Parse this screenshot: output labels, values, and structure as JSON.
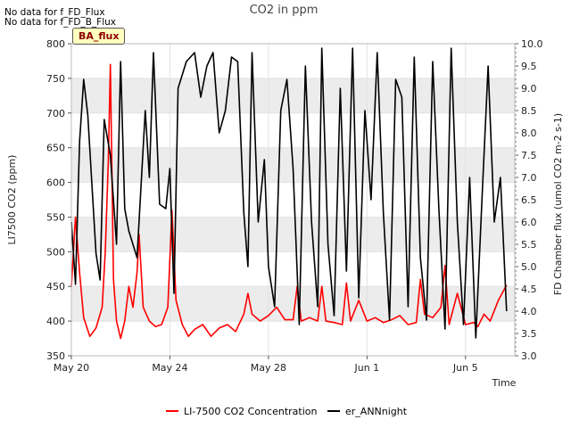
{
  "notes": [
    "No data for f_FD_Flux",
    "No data for f_FD_B_Flux"
  ],
  "badge": "BA_flux",
  "chart_data": {
    "type": "line",
    "title": "CO2 in ppm",
    "xlabel": "Time",
    "ylabel": "LI7500 CO2 (ppm)",
    "y2label": "FD Chamber flux (umol CO2 m-2 s-1)",
    "xlim": [
      "2024-05-20",
      "2024-06-07"
    ],
    "x_ticks": [
      "May 20",
      "May 24",
      "May 28",
      "Jun 1",
      "Jun 5"
    ],
    "x_tick_dates": [
      "2024-05-20",
      "2024-05-24",
      "2024-05-28",
      "2024-06-01",
      "2024-06-05"
    ],
    "ylim": [
      350,
      800
    ],
    "y_ticks": [
      "350",
      "400",
      "450",
      "500",
      "550",
      "600",
      "650",
      "700",
      "750",
      "800"
    ],
    "y2lim": [
      3.0,
      10.0
    ],
    "y2_ticks": [
      "3.0",
      "3.5",
      "4.0",
      "4.5",
      "5.0",
      "5.5",
      "6.0",
      "6.5",
      "7.0",
      "7.5",
      "8.0",
      "8.5",
      "9.0",
      "9.5",
      "10.0"
    ],
    "grid": true,
    "legend_position": "bottom",
    "series": [
      {
        "name": "LI-7500 CO2 Concentration",
        "axis": "left",
        "color": "#ff0000",
        "points": [
          [
            "2024-05-20 00:00",
            450
          ],
          [
            "2024-05-20 04:00",
            550
          ],
          [
            "2024-05-20 08:00",
            470
          ],
          [
            "2024-05-20 12:00",
            405
          ],
          [
            "2024-05-20 18:00",
            378
          ],
          [
            "2024-05-21 00:00",
            390
          ],
          [
            "2024-05-21 06:00",
            420
          ],
          [
            "2024-05-21 09:00",
            500
          ],
          [
            "2024-05-21 12:00",
            630
          ],
          [
            "2024-05-21 14:00",
            770
          ],
          [
            "2024-05-21 17:00",
            460
          ],
          [
            "2024-05-21 20:00",
            400
          ],
          [
            "2024-05-22 00:00",
            375
          ],
          [
            "2024-05-22 04:00",
            400
          ],
          [
            "2024-05-22 08:00",
            450
          ],
          [
            "2024-05-22 12:00",
            420
          ],
          [
            "2024-05-22 16:00",
            470
          ],
          [
            "2024-05-22 18:00",
            525
          ],
          [
            "2024-05-22 22:00",
            420
          ],
          [
            "2024-05-23 04:00",
            400
          ],
          [
            "2024-05-23 10:00",
            392
          ],
          [
            "2024-05-23 16:00",
            395
          ],
          [
            "2024-05-23 22:00",
            420
          ],
          [
            "2024-05-24 02:00",
            560
          ],
          [
            "2024-05-24 06:00",
            430
          ],
          [
            "2024-05-24 12:00",
            395
          ],
          [
            "2024-05-24 18:00",
            378
          ],
          [
            "2024-05-25 00:00",
            388
          ],
          [
            "2024-05-25 08:00",
            395
          ],
          [
            "2024-05-25 16:00",
            378
          ],
          [
            "2024-05-26 00:00",
            390
          ],
          [
            "2024-05-26 08:00",
            395
          ],
          [
            "2024-05-26 16:00",
            385
          ],
          [
            "2024-05-27 00:00",
            410
          ],
          [
            "2024-05-27 04:00",
            440
          ],
          [
            "2024-05-27 08:00",
            410
          ],
          [
            "2024-05-27 16:00",
            400
          ],
          [
            "2024-05-28 00:00",
            408
          ],
          [
            "2024-05-28 08:00",
            420
          ],
          [
            "2024-05-28 16:00",
            402
          ],
          [
            "2024-05-29 00:00",
            402
          ],
          [
            "2024-05-29 04:00",
            450
          ],
          [
            "2024-05-29 08:00",
            400
          ],
          [
            "2024-05-29 16:00",
            405
          ],
          [
            "2024-05-30 00:00",
            400
          ],
          [
            "2024-05-30 04:00",
            450
          ],
          [
            "2024-05-30 08:00",
            400
          ],
          [
            "2024-05-30 16:00",
            398
          ],
          [
            "2024-05-31 00:00",
            395
          ],
          [
            "2024-05-31 04:00",
            455
          ],
          [
            "2024-05-31 08:00",
            400
          ],
          [
            "2024-05-31 16:00",
            430
          ],
          [
            "2024-06-01 00:00",
            400
          ],
          [
            "2024-06-01 08:00",
            405
          ],
          [
            "2024-06-01 16:00",
            398
          ],
          [
            "2024-06-02 00:00",
            402
          ],
          [
            "2024-06-02 08:00",
            408
          ],
          [
            "2024-06-02 16:00",
            395
          ],
          [
            "2024-06-03 00:00",
            398
          ],
          [
            "2024-06-03 04:00",
            460
          ],
          [
            "2024-06-03 08:00",
            410
          ],
          [
            "2024-06-03 16:00",
            405
          ],
          [
            "2024-06-04 00:00",
            420
          ],
          [
            "2024-06-04 04:00",
            480
          ],
          [
            "2024-06-04 08:00",
            395
          ],
          [
            "2024-06-04 16:00",
            440
          ],
          [
            "2024-06-05 00:00",
            395
          ],
          [
            "2024-06-05 08:00",
            398
          ],
          [
            "2024-06-05 12:00",
            392
          ],
          [
            "2024-06-05 18:00",
            410
          ],
          [
            "2024-06-06 00:00",
            400
          ],
          [
            "2024-06-06 08:00",
            430
          ],
          [
            "2024-06-06 16:00",
            452
          ]
        ]
      },
      {
        "name": "er_ANNnight",
        "axis": "right",
        "color": "#000000",
        "points": [
          [
            "2024-05-20 00:00",
            6.0
          ],
          [
            "2024-05-20 04:00",
            4.6
          ],
          [
            "2024-05-20 08:00",
            7.8
          ],
          [
            "2024-05-20 12:00",
            9.2
          ],
          [
            "2024-05-20 16:00",
            8.4
          ],
          [
            "2024-05-21 00:00",
            5.3
          ],
          [
            "2024-05-21 04:00",
            4.7
          ],
          [
            "2024-05-21 08:00",
            8.3
          ],
          [
            "2024-05-21 14:00",
            7.5
          ],
          [
            "2024-05-21 20:00",
            5.5
          ],
          [
            "2024-05-22 00:00",
            9.6
          ],
          [
            "2024-05-22 04:00",
            6.3
          ],
          [
            "2024-05-22 08:00",
            5.8
          ],
          [
            "2024-05-22 16:00",
            5.2
          ],
          [
            "2024-05-23 00:00",
            8.5
          ],
          [
            "2024-05-23 04:00",
            7.0
          ],
          [
            "2024-05-23 08:00",
            9.8
          ],
          [
            "2024-05-23 14:00",
            6.4
          ],
          [
            "2024-05-23 20:00",
            6.3
          ],
          [
            "2024-05-24 00:00",
            7.2
          ],
          [
            "2024-05-24 04:00",
            4.4
          ],
          [
            "2024-05-24 08:00",
            9.0
          ],
          [
            "2024-05-24 16:00",
            9.6
          ],
          [
            "2024-05-25 00:00",
            9.8
          ],
          [
            "2024-05-25 06:00",
            8.8
          ],
          [
            "2024-05-25 12:00",
            9.5
          ],
          [
            "2024-05-25 18:00",
            9.8
          ],
          [
            "2024-05-26 00:00",
            8.0
          ],
          [
            "2024-05-26 06:00",
            8.5
          ],
          [
            "2024-05-26 12:00",
            9.7
          ],
          [
            "2024-05-26 18:00",
            9.6
          ],
          [
            "2024-05-27 00:00",
            6.2
          ],
          [
            "2024-05-27 04:00",
            5.0
          ],
          [
            "2024-05-27 08:00",
            9.8
          ],
          [
            "2024-05-27 14:00",
            6.0
          ],
          [
            "2024-05-27 20:00",
            7.4
          ],
          [
            "2024-05-28 00:00",
            5.0
          ],
          [
            "2024-05-28 06:00",
            4.1
          ],
          [
            "2024-05-28 12:00",
            8.5
          ],
          [
            "2024-05-28 18:00",
            9.2
          ],
          [
            "2024-05-29 00:00",
            7.2
          ],
          [
            "2024-05-29 06:00",
            3.7
          ],
          [
            "2024-05-29 12:00",
            9.5
          ],
          [
            "2024-05-29 18:00",
            6.0
          ],
          [
            "2024-05-30 00:00",
            4.1
          ],
          [
            "2024-05-30 04:00",
            9.9
          ],
          [
            "2024-05-30 10:00",
            5.5
          ],
          [
            "2024-05-30 16:00",
            3.9
          ],
          [
            "2024-05-30 22:00",
            9.0
          ],
          [
            "2024-05-31 04:00",
            4.9
          ],
          [
            "2024-05-31 10:00",
            9.9
          ],
          [
            "2024-05-31 16:00",
            4.3
          ],
          [
            "2024-05-31 22:00",
            8.5
          ],
          [
            "2024-06-01 04:00",
            6.5
          ],
          [
            "2024-06-01 10:00",
            9.8
          ],
          [
            "2024-06-01 16:00",
            6.2
          ],
          [
            "2024-06-01 22:00",
            3.8
          ],
          [
            "2024-06-02 04:00",
            9.2
          ],
          [
            "2024-06-02 10:00",
            8.8
          ],
          [
            "2024-06-02 16:00",
            4.1
          ],
          [
            "2024-06-02 22:00",
            9.7
          ],
          [
            "2024-06-03 04:00",
            5.2
          ],
          [
            "2024-06-03 10:00",
            3.8
          ],
          [
            "2024-06-03 16:00",
            9.6
          ],
          [
            "2024-06-03 22:00",
            6.3
          ],
          [
            "2024-06-04 04:00",
            3.6
          ],
          [
            "2024-06-04 10:00",
            9.9
          ],
          [
            "2024-06-04 16:00",
            6.0
          ],
          [
            "2024-06-04 22:00",
            3.7
          ],
          [
            "2024-06-05 04:00",
            7.0
          ],
          [
            "2024-06-05 10:00",
            3.4
          ],
          [
            "2024-06-05 16:00",
            6.5
          ],
          [
            "2024-06-05 22:00",
            9.5
          ],
          [
            "2024-06-06 04:00",
            6.0
          ],
          [
            "2024-06-06 10:00",
            7.0
          ],
          [
            "2024-06-06 16:00",
            4.0
          ]
        ]
      }
    ]
  }
}
